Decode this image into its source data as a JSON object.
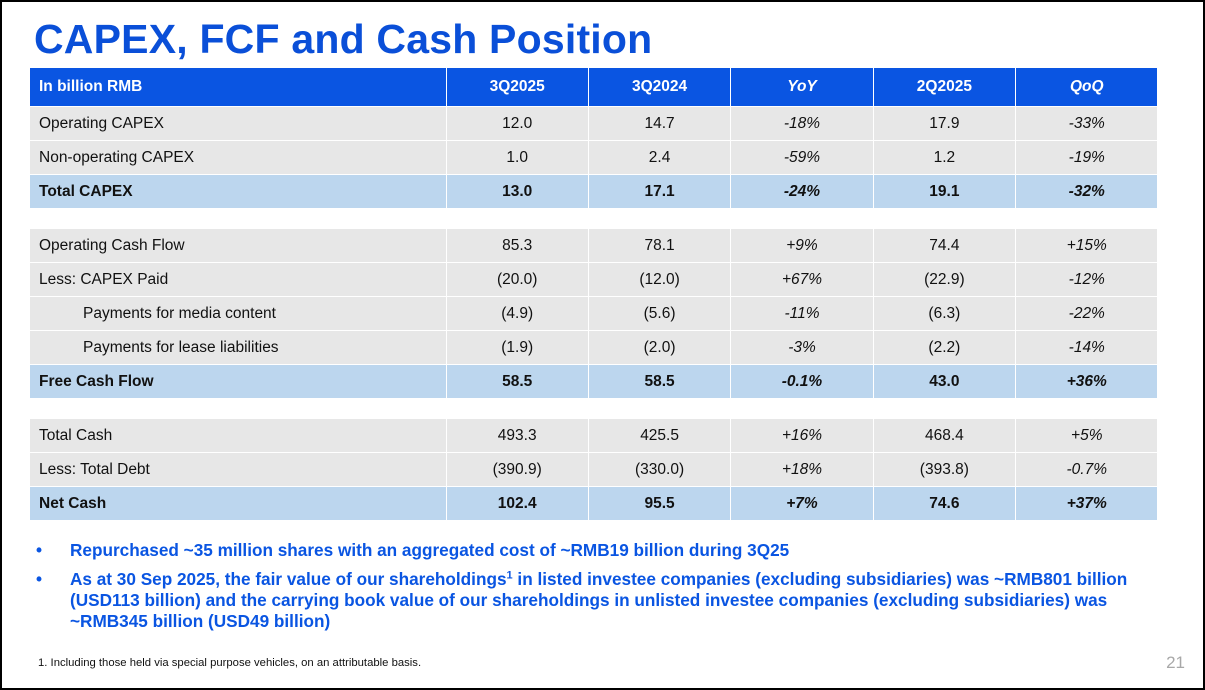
{
  "title": "CAPEX, FCF and Cash Position",
  "table": {
    "header": [
      "In billion RMB",
      "3Q2025",
      "3Q2024",
      "YoY",
      "2Q2025",
      "QoQ"
    ],
    "rows": [
      {
        "label": "Operating CAPEX",
        "cells": [
          "12.0",
          "14.7",
          "-18%",
          "17.9",
          "-33%"
        ]
      },
      {
        "label": "Non-operating CAPEX",
        "cells": [
          "1.0",
          "2.4",
          "-59%",
          "1.2",
          "-19%"
        ]
      },
      {
        "label": "Total CAPEX",
        "cells": [
          "13.0",
          "17.1",
          "-24%",
          "19.1",
          "-32%"
        ]
      },
      {
        "label": "Operating Cash Flow",
        "cells": [
          "85.3",
          "78.1",
          "+9%",
          "74.4",
          "+15%"
        ]
      },
      {
        "label": "Less: CAPEX Paid",
        "cells": [
          "(20.0)",
          "(12.0)",
          "+67%",
          "(22.9)",
          "-12%"
        ]
      },
      {
        "label": "Payments for media content",
        "cells": [
          "(4.9)",
          "(5.6)",
          "-11%",
          "(6.3)",
          "-22%"
        ]
      },
      {
        "label": "Payments for lease liabilities",
        "cells": [
          "(1.9)",
          "(2.0)",
          "-3%",
          "(2.2)",
          "-14%"
        ]
      },
      {
        "label": "Free Cash Flow",
        "cells": [
          "58.5",
          "58.5",
          "-0.1%",
          "43.0",
          "+36%"
        ]
      },
      {
        "label": "Total Cash",
        "cells": [
          "493.3",
          "425.5",
          "+16%",
          "468.4",
          "+5%"
        ]
      },
      {
        "label": "Less: Total Debt",
        "cells": [
          "(390.9)",
          "(330.0)",
          "+18%",
          "(393.8)",
          "-0.7%"
        ]
      },
      {
        "label": "Net Cash",
        "cells": [
          "102.4",
          "95.5",
          "+7%",
          "74.6",
          "+37%"
        ]
      }
    ]
  },
  "bullets": {
    "b1": "Repurchased ~35 million shares with an aggregated cost of ~RMB19 billion during 3Q25",
    "b2_pre": "As at 30 Sep 2025, the fair value of our shareholdings",
    "b2_sup": "1",
    "b2_post": " in listed investee companies (excluding subsidiaries) was ~RMB801 billion (USD113 billion) and the carrying book value of our shareholdings in unlisted investee companies (excluding subsidiaries) was ~RMB345 billion (USD49 billion)"
  },
  "footnote": "1. Including those held via special purpose vehicles, on an attributable basis.",
  "page_number": "21",
  "colors": {
    "accent": "#0a55e2",
    "title": "#0a4fd8",
    "row": "#e7e7e7",
    "total_row": "#bcd6ee"
  }
}
